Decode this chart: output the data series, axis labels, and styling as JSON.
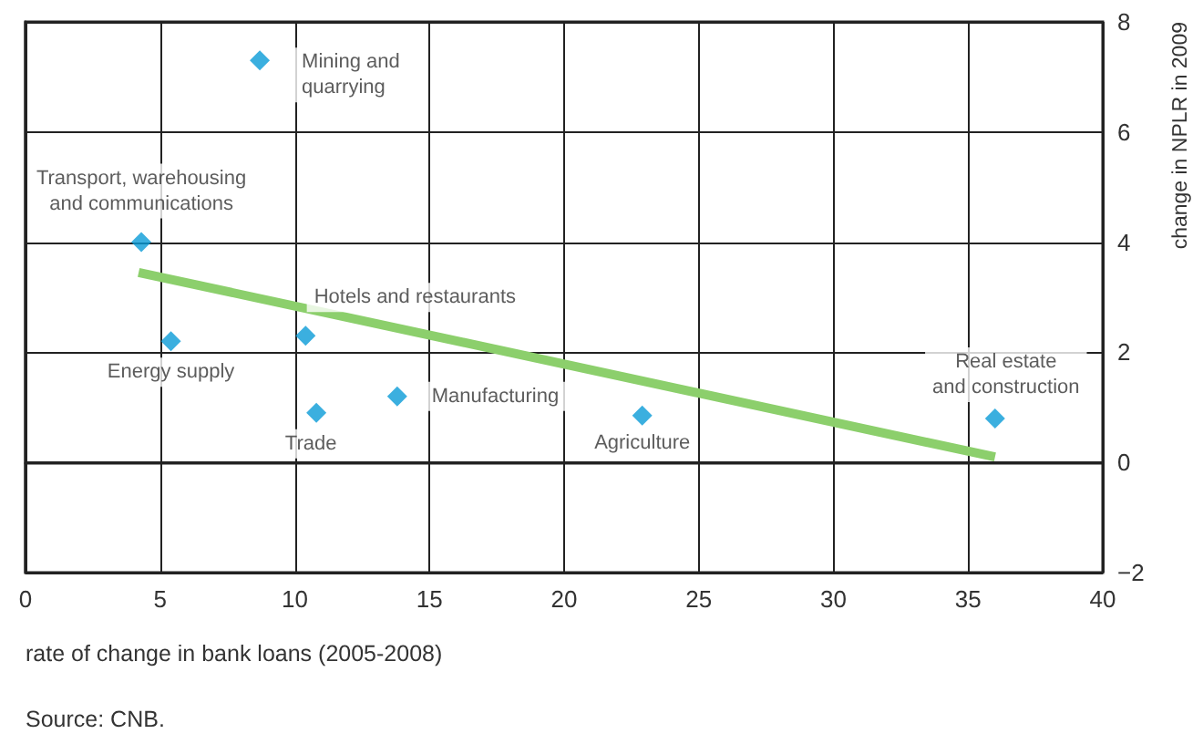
{
  "chart_data": {
    "type": "scatter",
    "xlabel": "rate of change in bank loans (2005-2008)",
    "ylabel": "change in NPLR in 2009",
    "xlim": [
      0,
      40
    ],
    "xticks": [
      0,
      5,
      10,
      15,
      20,
      25,
      30,
      35,
      40
    ],
    "ylim": [
      -2,
      8
    ],
    "yticks": [
      {
        "value": -2,
        "label": "−2"
      },
      0,
      2,
      4,
      6,
      8
    ],
    "grid": true,
    "marker": "diamond",
    "series": [
      {
        "color": "#0a9bd7",
        "x": [
          8.7,
          4.3,
          5.4,
          10.4,
          10.8,
          13.8,
          22.9,
          36.0
        ],
        "values": [
          7.3,
          4.0,
          2.2,
          2.3,
          0.9,
          1.2,
          0.85,
          0.8
        ]
      },
      {
        "type": "line",
        "color": "#8ccf6c",
        "marker": "none",
        "x": [
          4.2,
          36.0
        ],
        "values": [
          3.45,
          0.1
        ]
      }
    ],
    "annotations": [
      {
        "text": "Mining and\nquarrying",
        "x": 8.7,
        "y": 7.3
      },
      {
        "text": "Transport, warehousing\nand communications",
        "x": 4.3,
        "y": 4.0
      },
      {
        "text": "Energy supply",
        "x": 5.4,
        "y": 2.2
      },
      {
        "text": "Hotels and restaurants",
        "x": 10.4,
        "y": 2.3
      },
      {
        "text": "Trade",
        "x": 10.8,
        "y": 0.9
      },
      {
        "text": "Manufacturing",
        "x": 13.8,
        "y": 1.2
      },
      {
        "text": "Agriculture",
        "x": 22.9,
        "y": 0.85
      },
      {
        "text": "Real estate\nand construction",
        "x": 36.0,
        "y": 0.8
      },
      "Source: CNB."
    ]
  }
}
